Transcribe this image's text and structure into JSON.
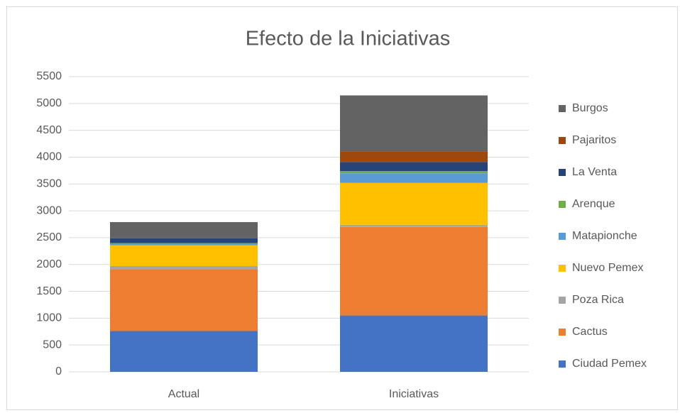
{
  "chart_data": {
    "type": "stacked_bar",
    "title": "Efecto de la Iniciativas",
    "categories": [
      "Actual",
      "Iniciativas"
    ],
    "series": [
      {
        "name": "Ciudad Pemex",
        "color": "#4472c4",
        "values": [
          760,
          1050
        ]
      },
      {
        "name": "Cactus",
        "color": "#ed7d31",
        "values": [
          1150,
          1650
        ]
      },
      {
        "name": "Poza Rica",
        "color": "#a5a5a5",
        "values": [
          60,
          40
        ]
      },
      {
        "name": "Nuevo Pemex",
        "color": "#ffc000",
        "values": [
          390,
          780
        ]
      },
      {
        "name": "Matapionche",
        "color": "#5b9bd5",
        "values": [
          20,
          180
        ]
      },
      {
        "name": "Arenque",
        "color": "#70ad47",
        "values": [
          20,
          40
        ]
      },
      {
        "name": "La Venta",
        "color": "#264478",
        "values": [
          90,
          170
        ]
      },
      {
        "name": "Pajaritos",
        "color": "#9e480e",
        "values": [
          0,
          200
        ]
      },
      {
        "name": "Burgos",
        "color": "#636363",
        "values": [
          300,
          1040
        ]
      }
    ],
    "ylim": [
      0,
      5500
    ],
    "yticks": [
      0,
      500,
      1000,
      1500,
      2000,
      2500,
      3000,
      3500,
      4000,
      4500,
      5000,
      5500
    ],
    "grid": true,
    "legend": "right"
  }
}
